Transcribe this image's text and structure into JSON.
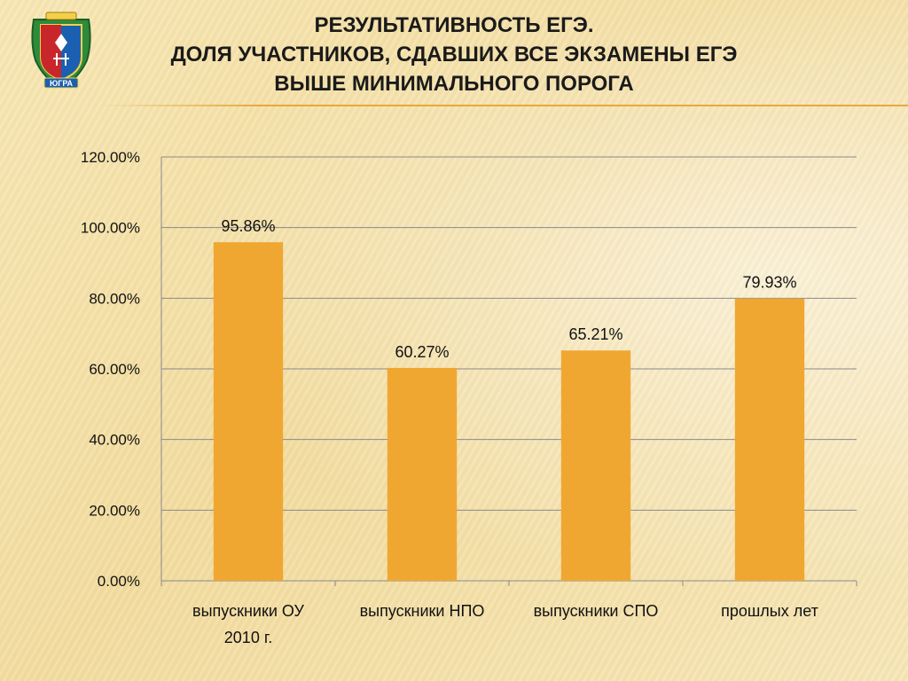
{
  "slide": {
    "title_lines": [
      "РЕЗУЛЬТАТИВНОСТЬ ЕГЭ.",
      "ДОЛЯ УЧАСТНИКОВ, СДАВШИХ ВСЕ ЭКЗАМЕНЫ ЕГЭ",
      "ВЫШЕ МИНИМАЛЬНОГО ПОРОГА"
    ],
    "emblem_text": "ЮГРА"
  },
  "colors": {
    "bar": "#f0a732",
    "grid": "#8a8a8a",
    "accent_rule": "#e8a83c"
  },
  "chart_data": {
    "type": "bar",
    "categories": [
      [
        "выпускники ОУ",
        "2010 г."
      ],
      [
        "выпускники НПО"
      ],
      [
        "выпускники СПО"
      ],
      [
        "прошлых лет"
      ]
    ],
    "values": [
      95.86,
      60.27,
      65.21,
      79.93
    ],
    "data_labels": [
      "95.86%",
      "60.27%",
      "65.21%",
      "79.93%"
    ],
    "y_ticks": [
      "0.00%",
      "20.00%",
      "40.00%",
      "60.00%",
      "80.00%",
      "100.00%",
      "120.00%"
    ],
    "ylim": [
      0,
      120
    ],
    "grid": true,
    "legend": "none",
    "title": "",
    "xlabel": "",
    "ylabel": ""
  }
}
